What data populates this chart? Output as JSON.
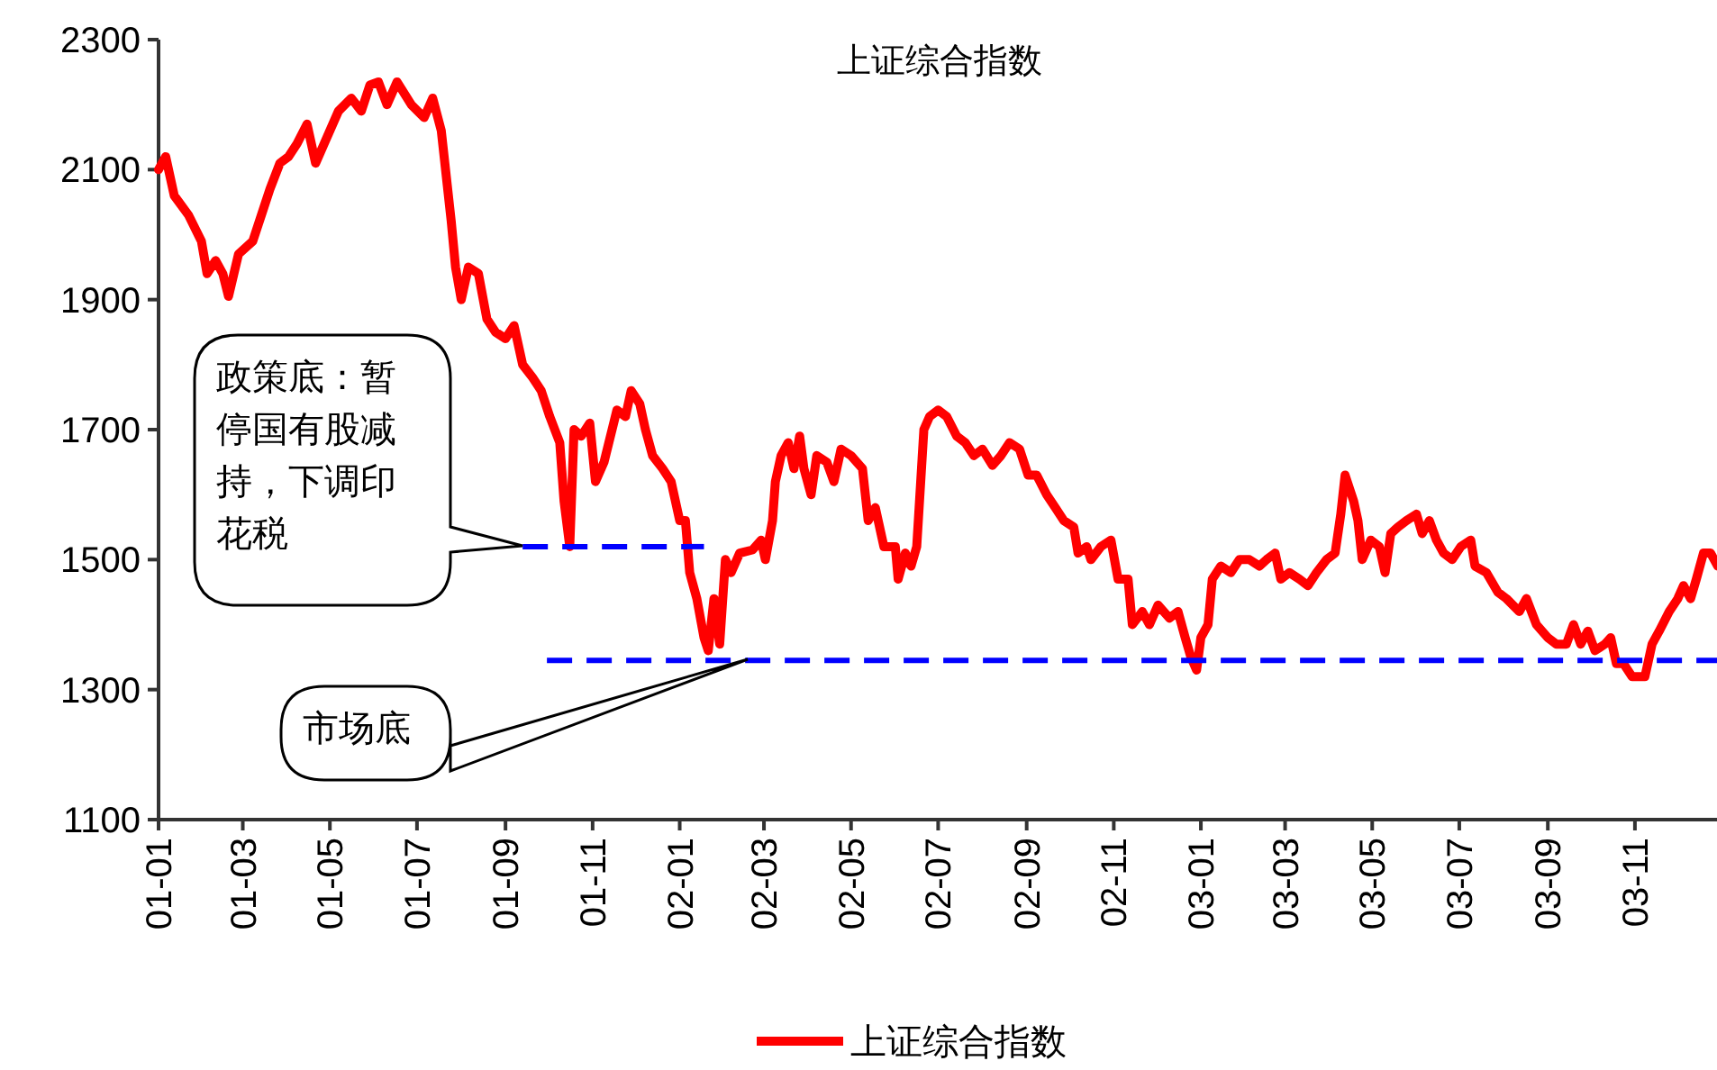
{
  "chart_data": {
    "type": "line",
    "title": "上证综合指数",
    "xlim": [
      "2001-01-01",
      "2003-12-31"
    ],
    "ylim": [
      1100,
      2300
    ],
    "yticks": [
      1100,
      1300,
      1500,
      1700,
      1900,
      2100,
      2300
    ],
    "xticks": [
      {
        "value": "2001-01-01",
        "label": "01-01"
      },
      {
        "value": "2001-03-01",
        "label": "01-03"
      },
      {
        "value": "2001-05-01",
        "label": "01-05"
      },
      {
        "value": "2001-07-01",
        "label": "01-07"
      },
      {
        "value": "2001-09-01",
        "label": "01-09"
      },
      {
        "value": "2001-11-01",
        "label": "01-11"
      },
      {
        "value": "2002-01-01",
        "label": "02-01"
      },
      {
        "value": "2002-03-01",
        "label": "02-03"
      },
      {
        "value": "2002-05-01",
        "label": "02-05"
      },
      {
        "value": "2002-07-01",
        "label": "02-07"
      },
      {
        "value": "2002-09-01",
        "label": "02-09"
      },
      {
        "value": "2002-11-01",
        "label": "02-11"
      },
      {
        "value": "2003-01-01",
        "label": "03-01"
      },
      {
        "value": "2003-03-01",
        "label": "03-03"
      },
      {
        "value": "2003-05-01",
        "label": "03-05"
      },
      {
        "value": "2003-07-01",
        "label": "03-07"
      },
      {
        "value": "2003-09-01",
        "label": "03-09"
      },
      {
        "value": "2003-11-01",
        "label": "03-11"
      }
    ],
    "grid": false,
    "legend": "bottom",
    "series": [
      {
        "name": "上证综合指数",
        "color": "#ff0000",
        "line_style": "solid",
        "x": [
          "2001-01-01",
          "2001-01-06",
          "2001-01-12",
          "2001-01-22",
          "2001-01-31",
          "2001-02-04",
          "2001-02-10",
          "2001-02-15",
          "2001-02-19",
          "2001-02-26",
          "2001-03-08",
          "2001-03-14",
          "2001-03-20",
          "2001-03-27",
          "2001-04-02",
          "2001-04-08",
          "2001-04-15",
          "2001-04-21",
          "2001-04-27",
          "2001-05-07",
          "2001-05-16",
          "2001-05-23",
          "2001-05-29",
          "2001-06-04",
          "2001-06-10",
          "2001-06-17",
          "2001-06-27",
          "2001-07-06",
          "2001-07-12",
          "2001-07-18",
          "2001-07-25",
          "2001-07-28",
          "2001-08-01",
          "2001-08-06",
          "2001-08-13",
          "2001-08-19",
          "2001-08-25",
          "2001-09-01",
          "2001-09-07",
          "2001-09-13",
          "2001-09-20",
          "2001-09-26",
          "2001-10-02",
          "2001-10-09",
          "2001-10-12",
          "2001-10-16",
          "2001-10-19",
          "2001-10-24",
          "2001-10-30",
          "2001-11-03",
          "2001-11-09",
          "2001-11-18",
          "2001-11-24",
          "2001-11-28",
          "2001-12-04",
          "2001-12-08",
          "2001-12-13",
          "2001-12-20",
          "2001-12-26",
          "2002-01-01",
          "2002-01-05",
          "2002-01-08",
          "2002-01-13",
          "2002-01-18",
          "2002-01-21",
          "2002-01-25",
          "2002-01-29",
          "2002-02-02",
          "2002-02-06",
          "2002-02-12",
          "2002-02-21",
          "2002-02-27",
          "2002-03-02",
          "2002-03-07",
          "2002-03-09",
          "2002-03-13",
          "2002-03-18",
          "2002-03-22",
          "2002-03-26",
          "2002-03-29",
          "2002-04-03",
          "2002-04-07",
          "2002-04-14",
          "2002-04-19",
          "2002-04-24",
          "2002-05-01",
          "2002-05-09",
          "2002-05-13",
          "2002-05-18",
          "2002-05-24",
          "2002-06-01",
          "2002-06-03",
          "2002-06-08",
          "2002-06-12",
          "2002-06-16",
          "2002-06-21",
          "2002-06-25",
          "2002-07-01",
          "2002-07-07",
          "2002-07-14",
          "2002-07-20",
          "2002-07-26",
          "2002-08-01",
          "2002-08-08",
          "2002-08-14",
          "2002-08-20",
          "2002-08-27",
          "2002-09-02",
          "2002-09-08",
          "2002-09-15",
          "2002-09-21",
          "2002-09-27",
          "2002-10-04",
          "2002-10-07",
          "2002-10-13",
          "2002-10-16",
          "2002-10-23",
          "2002-10-30",
          "2002-11-04",
          "2002-11-11",
          "2002-11-14",
          "2002-11-21",
          "2002-11-26",
          "2002-12-02",
          "2002-12-10",
          "2002-12-16",
          "2002-12-21",
          "2002-12-25",
          "2002-12-29",
          "2003-01-01",
          "2003-01-06",
          "2003-01-09",
          "2003-01-15",
          "2003-01-22",
          "2003-01-28",
          "2003-02-04",
          "2003-02-11",
          "2003-02-16",
          "2003-02-22",
          "2003-02-26",
          "2003-03-04",
          "2003-03-11",
          "2003-03-17",
          "2003-03-23",
          "2003-03-30",
          "2003-04-05",
          "2003-04-09",
          "2003-04-12",
          "2003-04-18",
          "2003-04-21",
          "2003-04-24",
          "2003-04-30",
          "2003-05-06",
          "2003-05-10",
          "2003-05-14",
          "2003-05-19",
          "2003-05-25",
          "2003-06-01",
          "2003-06-05",
          "2003-06-10",
          "2003-06-15",
          "2003-06-20",
          "2003-06-26",
          "2003-07-02",
          "2003-07-09",
          "2003-07-12",
          "2003-07-20",
          "2003-07-28",
          "2003-08-03",
          "2003-08-12",
          "2003-08-17",
          "2003-08-24",
          "2003-09-01",
          "2003-09-07",
          "2003-09-14",
          "2003-09-19",
          "2003-09-24",
          "2003-09-29",
          "2003-10-04",
          "2003-10-11",
          "2003-10-15",
          "2003-10-19",
          "2003-10-24",
          "2003-10-30",
          "2003-11-08",
          "2003-11-13",
          "2003-11-18",
          "2003-11-25",
          "2003-12-01",
          "2003-12-05",
          "2003-12-10",
          "2003-12-14",
          "2003-12-19",
          "2003-12-24",
          "2003-12-29"
        ],
        "values": [
          2100,
          2120,
          2060,
          2030,
          1990,
          1940,
          1960,
          1940,
          1905,
          1970,
          1990,
          2030,
          2070,
          2110,
          2120,
          2140,
          2170,
          2110,
          2140,
          2190,
          2210,
          2190,
          2230,
          2235,
          2200,
          2235,
          2200,
          2180,
          2210,
          2160,
          2020,
          1950,
          1900,
          1950,
          1940,
          1870,
          1850,
          1840,
          1860,
          1800,
          1780,
          1760,
          1720,
          1680,
          1590,
          1520,
          1700,
          1690,
          1710,
          1620,
          1650,
          1730,
          1720,
          1760,
          1740,
          1700,
          1660,
          1640,
          1620,
          1560,
          1560,
          1480,
          1440,
          1380,
          1360,
          1440,
          1370,
          1500,
          1480,
          1510,
          1515,
          1530,
          1500,
          1560,
          1620,
          1660,
          1680,
          1640,
          1690,
          1640,
          1600,
          1660,
          1650,
          1620,
          1670,
          1660,
          1640,
          1560,
          1580,
          1520,
          1520,
          1470,
          1510,
          1490,
          1520,
          1700,
          1720,
          1730,
          1720,
          1690,
          1680,
          1660,
          1670,
          1645,
          1660,
          1680,
          1670,
          1630,
          1630,
          1600,
          1580,
          1560,
          1550,
          1510,
          1520,
          1500,
          1520,
          1530,
          1470,
          1470,
          1400,
          1420,
          1400,
          1430,
          1410,
          1420,
          1380,
          1350,
          1330,
          1380,
          1400,
          1470,
          1490,
          1480,
          1500,
          1500,
          1490,
          1500,
          1510,
          1470,
          1480,
          1470,
          1460,
          1480,
          1500,
          1510,
          1570,
          1630,
          1590,
          1560,
          1500,
          1530,
          1520,
          1480,
          1540,
          1550,
          1560,
          1570,
          1540,
          1560,
          1530,
          1510,
          1500,
          1520,
          1530,
          1490,
          1480,
          1450,
          1440,
          1420,
          1440,
          1400,
          1380,
          1370,
          1370,
          1400,
          1370,
          1390,
          1360,
          1370,
          1380,
          1340,
          1340,
          1320,
          1320,
          1370,
          1390,
          1420,
          1440,
          1460,
          1440,
          1470,
          1510,
          1510,
          1490
        ]
      },
      {
        "color": "#0000ff",
        "line_style": "dashed",
        "x": [
          "2001-09-13",
          "2002-01-18"
        ],
        "values": [
          1520,
          1520
        ]
      },
      {
        "color": "#0000ff",
        "line_style": "dashed",
        "x": [
          "2001-09-30",
          "2003-12-31"
        ],
        "values": [
          1345,
          1345
        ]
      }
    ],
    "annotations": [
      "政策底：暂停国有股减持，下调印花税",
      "市场底"
    ]
  }
}
